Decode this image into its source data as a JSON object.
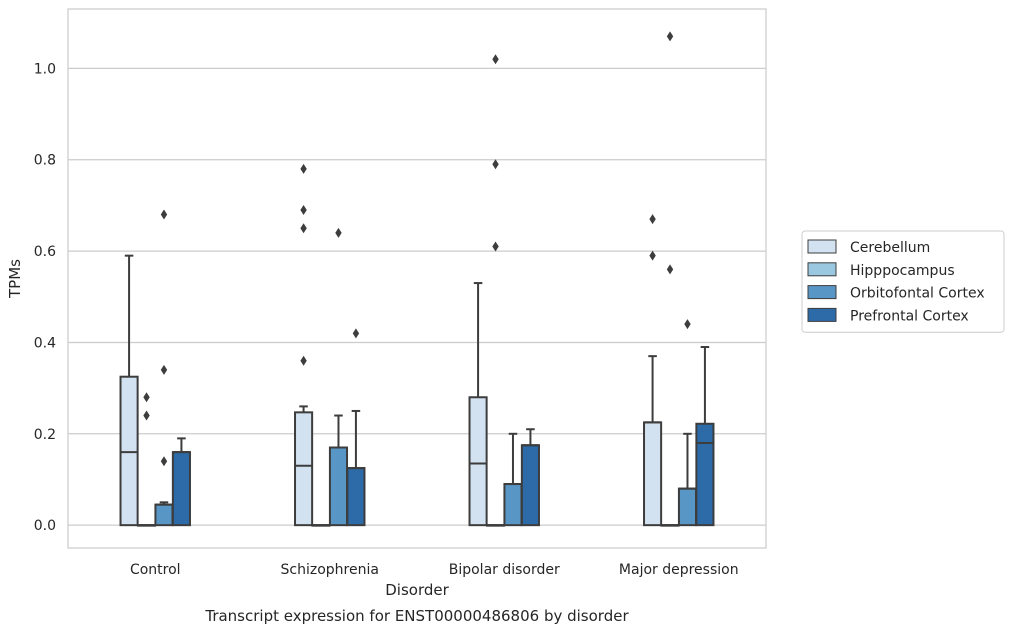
{
  "chart_data": {
    "type": "box",
    "caption": "Transcript expression for ENST00000486806 by disorder",
    "xlabel": "Disorder",
    "ylabel": "TPMs",
    "ylim": [
      -0.05,
      1.13
    ],
    "yticks": [
      0.0,
      0.2,
      0.4,
      0.6,
      0.8,
      1.0
    ],
    "ytick_labels": [
      "0.0",
      "0.2",
      "0.4",
      "0.6",
      "0.8",
      "1.0"
    ],
    "grid": true,
    "legend_position": "right",
    "categories": [
      "Control",
      "Schizophrenia",
      "Bipolar disorder",
      "Major depression"
    ],
    "series": [
      {
        "name": "Cerebellum",
        "color": "#d3e2f1",
        "boxes": [
          {
            "q1": 0.0,
            "median": 0.16,
            "q3": 0.325,
            "whisker_low": 0.0,
            "whisker_high": 0.59,
            "outliers": []
          },
          {
            "q1": 0.0,
            "median": 0.13,
            "q3": 0.247,
            "whisker_low": 0.0,
            "whisker_high": 0.26,
            "outliers": [
              0.36,
              0.65,
              0.69,
              0.78
            ]
          },
          {
            "q1": 0.0,
            "median": 0.135,
            "q3": 0.28,
            "whisker_low": 0.0,
            "whisker_high": 0.53,
            "outliers": []
          },
          {
            "q1": 0.0,
            "median": 0.225,
            "q3": 0.225,
            "whisker_low": 0.0,
            "whisker_high": 0.37,
            "outliers": [
              0.59,
              0.67
            ]
          }
        ]
      },
      {
        "name": "Hipppocampus",
        "color": "#9ac8e0",
        "boxes": [
          {
            "q1": 0.0,
            "median": 0.0,
            "q3": 0.0,
            "whisker_low": 0.0,
            "whisker_high": 0.0,
            "outliers": [
              0.24,
              0.28
            ]
          },
          {
            "q1": 0.0,
            "median": 0.0,
            "q3": 0.0,
            "whisker_low": 0.0,
            "whisker_high": 0.0,
            "outliers": []
          },
          {
            "q1": 0.0,
            "median": 0.0,
            "q3": 0.0,
            "whisker_low": 0.0,
            "whisker_high": 0.0,
            "outliers": [
              0.61,
              0.79,
              1.02
            ]
          },
          {
            "q1": 0.0,
            "median": 0.0,
            "q3": 0.0,
            "whisker_low": 0.0,
            "whisker_high": 0.0,
            "outliers": [
              0.56,
              1.07
            ]
          }
        ]
      },
      {
        "name": "Orbitofontal Cortex",
        "color": "#5896c6",
        "boxes": [
          {
            "q1": 0.0,
            "median": 0.045,
            "q3": 0.045,
            "whisker_low": 0.0,
            "whisker_high": 0.05,
            "outliers": [
              0.14,
              0.34,
              0.68
            ]
          },
          {
            "q1": 0.0,
            "median": 0.17,
            "q3": 0.17,
            "whisker_low": 0.0,
            "whisker_high": 0.24,
            "outliers": [
              0.64
            ]
          },
          {
            "q1": 0.0,
            "median": 0.09,
            "q3": 0.09,
            "whisker_low": 0.0,
            "whisker_high": 0.2,
            "outliers": []
          },
          {
            "q1": 0.0,
            "median": 0.08,
            "q3": 0.08,
            "whisker_low": 0.0,
            "whisker_high": 0.2,
            "outliers": [
              0.44
            ]
          }
        ]
      },
      {
        "name": "Prefrontal Cortex",
        "color": "#2c6ba8",
        "boxes": [
          {
            "q1": 0.0,
            "median": 0.16,
            "q3": 0.16,
            "whisker_low": 0.0,
            "whisker_high": 0.19,
            "outliers": []
          },
          {
            "q1": 0.0,
            "median": 0.125,
            "q3": 0.125,
            "whisker_low": 0.0,
            "whisker_high": 0.25,
            "outliers": [
              0.42
            ]
          },
          {
            "q1": 0.0,
            "median": 0.175,
            "q3": 0.175,
            "whisker_low": 0.0,
            "whisker_high": 0.21,
            "outliers": []
          },
          {
            "q1": 0.0,
            "median": 0.18,
            "q3": 0.222,
            "whisker_low": 0.0,
            "whisker_high": 0.39,
            "outliers": []
          }
        ]
      }
    ]
  }
}
